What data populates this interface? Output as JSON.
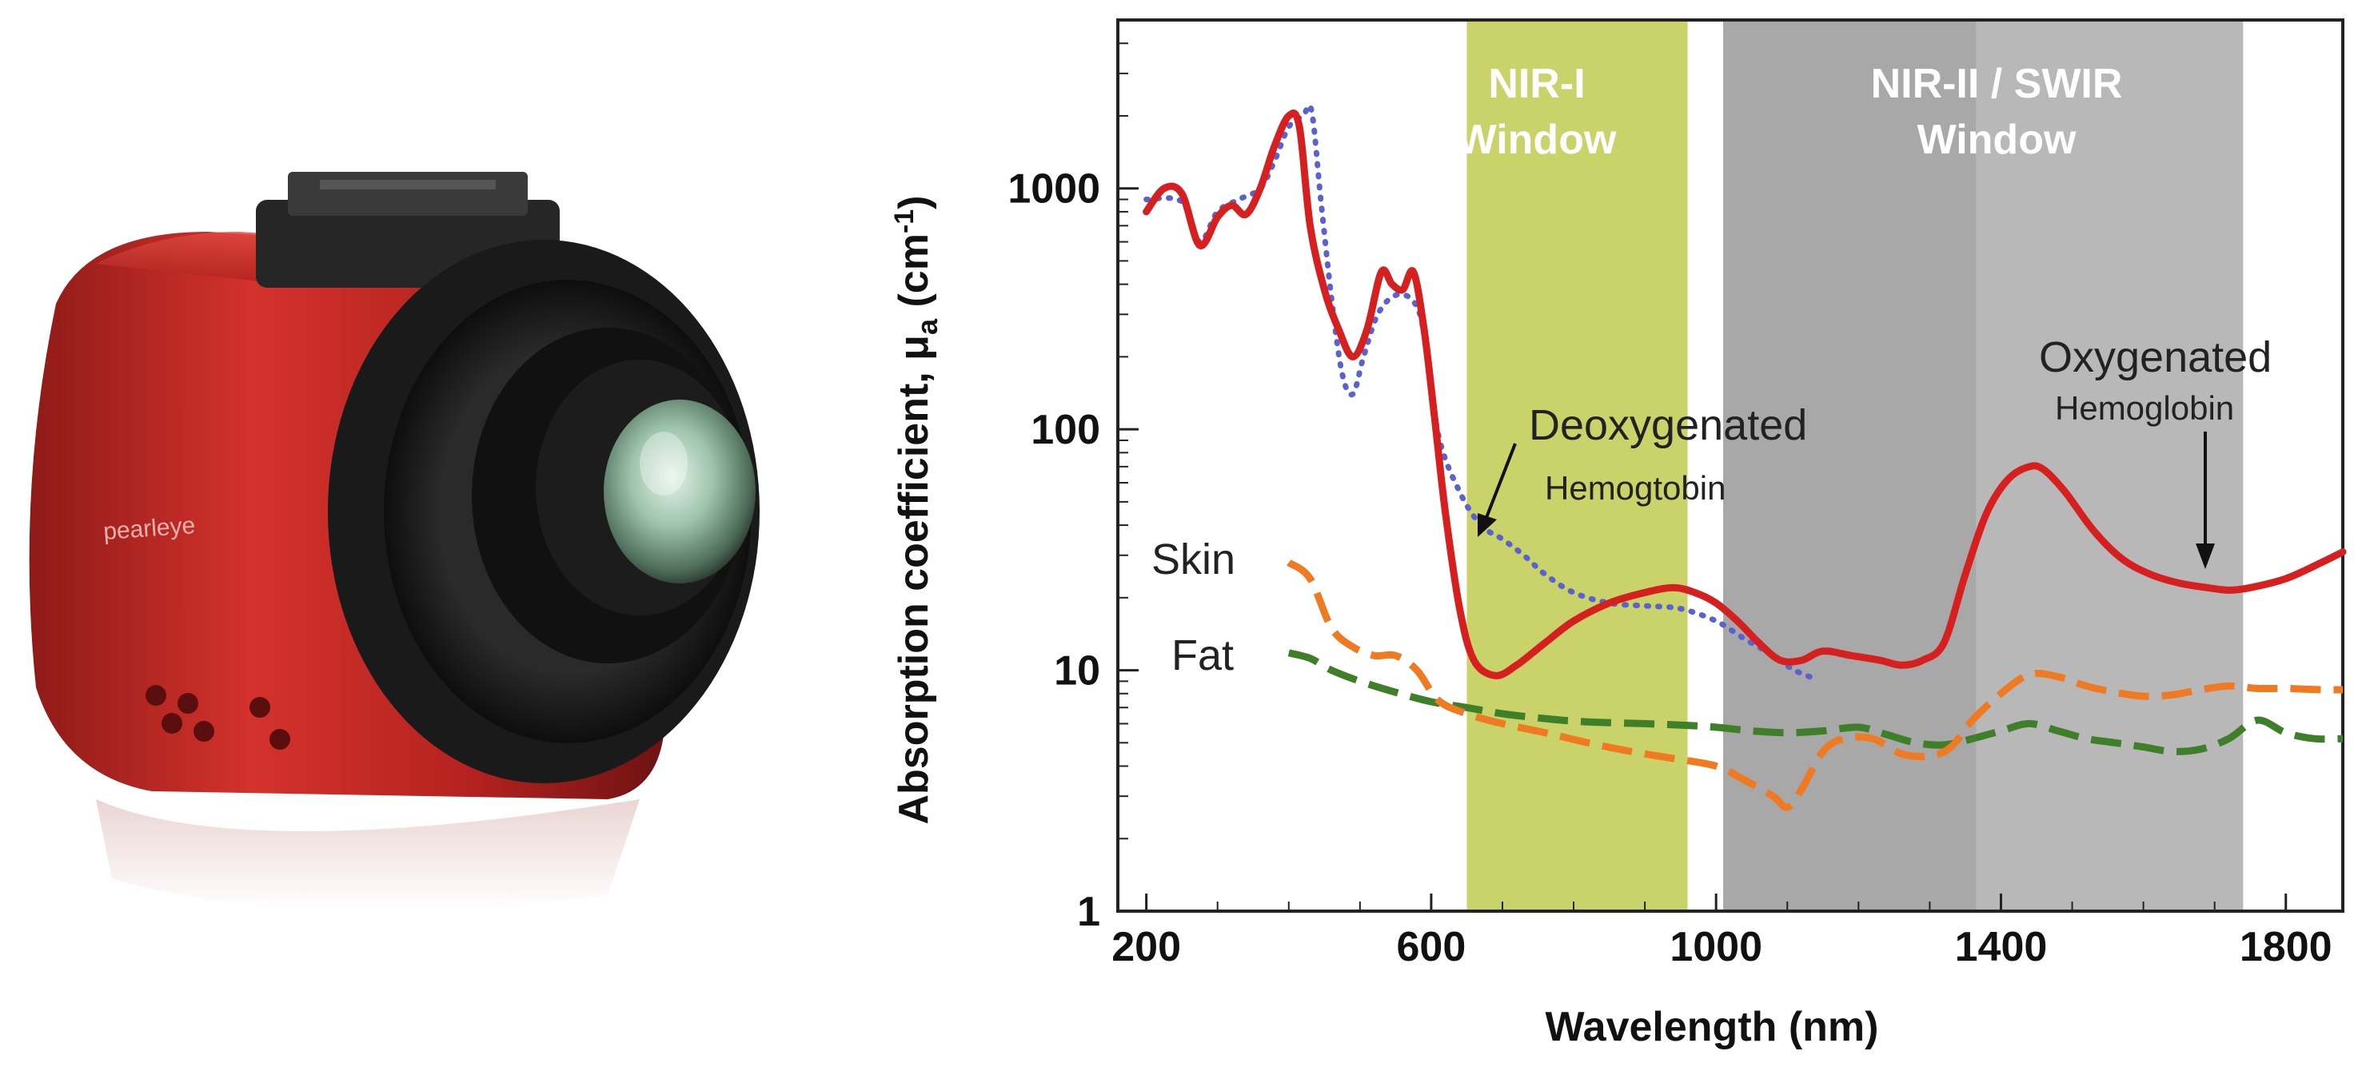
{
  "camera": {
    "brand_text": "pearleye",
    "description": "red SWIR camera"
  },
  "chart_data": {
    "type": "line",
    "xlabel": "Wavelength (nm)",
    "ylabel_main": "Absorption coefficient, μ",
    "ylabel_sub": "a",
    "ylabel_unit_open": "(cm",
    "ylabel_unit_sup": "-1",
    "ylabel_unit_close": ")",
    "xlim": [
      160,
      1880
    ],
    "ylim": [
      1,
      5000
    ],
    "yscale": "log",
    "x_ticks": [
      {
        "value": 200,
        "label": "200"
      },
      {
        "value": 600,
        "label": "600"
      },
      {
        "value": 1000,
        "label": "1000"
      },
      {
        "value": 1400,
        "label": "1400"
      },
      {
        "value": 1800,
        "label": "1800"
      }
    ],
    "y_ticks": [
      {
        "value": 1,
        "label": "1"
      },
      {
        "value": 10,
        "label": "10"
      },
      {
        "value": 100,
        "label": "100"
      },
      {
        "value": 1000,
        "label": "1000"
      }
    ],
    "windows": [
      {
        "name": "NIR-I Window",
        "lines": [
          "NIR-I",
          "Window"
        ],
        "x_start": 650,
        "x_end": 960,
        "color": "#c9d36a"
      },
      {
        "name": "NIR-II / SWIR Window",
        "lines": [
          "NIR-II / SWIR",
          "Window"
        ],
        "x_start": 1010,
        "x_end": 1740,
        "color": "#b8b8b8",
        "inner_x_start": 1010,
        "inner_x_end": 1365,
        "inner_color": "#a8a8a8"
      }
    ],
    "series": [
      {
        "name": "Oxygenated Hemoglobin",
        "style": "solid",
        "color": "#d62020",
        "points": [
          [
            200,
            800
          ],
          [
            225,
            1000
          ],
          [
            250,
            950
          ],
          [
            275,
            580
          ],
          [
            300,
            760
          ],
          [
            320,
            850
          ],
          [
            340,
            780
          ],
          [
            360,
            1000
          ],
          [
            380,
            1500
          ],
          [
            400,
            2000
          ],
          [
            415,
            1800
          ],
          [
            430,
            700
          ],
          [
            450,
            380
          ],
          [
            470,
            260
          ],
          [
            490,
            200
          ],
          [
            510,
            260
          ],
          [
            530,
            450
          ],
          [
            545,
            400
          ],
          [
            560,
            380
          ],
          [
            575,
            450
          ],
          [
            590,
            260
          ],
          [
            605,
            110
          ],
          [
            620,
            45
          ],
          [
            640,
            18
          ],
          [
            660,
            11
          ],
          [
            690,
            9.5
          ],
          [
            720,
            10.5
          ],
          [
            760,
            13
          ],
          [
            800,
            16
          ],
          [
            850,
            19
          ],
          [
            900,
            21
          ],
          [
            940,
            22
          ],
          [
            970,
            21
          ],
          [
            1000,
            19
          ],
          [
            1030,
            16
          ],
          [
            1060,
            13
          ],
          [
            1090,
            11
          ],
          [
            1120,
            11
          ],
          [
            1150,
            12
          ],
          [
            1190,
            11.5
          ],
          [
            1230,
            11
          ],
          [
            1260,
            10.5
          ],
          [
            1290,
            11
          ],
          [
            1320,
            13
          ],
          [
            1350,
            25
          ],
          [
            1380,
            45
          ],
          [
            1410,
            62
          ],
          [
            1440,
            70
          ],
          [
            1460,
            68
          ],
          [
            1490,
            55
          ],
          [
            1530,
            38
          ],
          [
            1570,
            29
          ],
          [
            1610,
            25
          ],
          [
            1650,
            23
          ],
          [
            1690,
            22
          ],
          [
            1720,
            21.5
          ],
          [
            1750,
            22
          ],
          [
            1800,
            24
          ],
          [
            1850,
            28
          ],
          [
            1880,
            31
          ]
        ]
      },
      {
        "name": "Deoxygenated Hemoglobin",
        "style": "dotted",
        "color": "#5a62d0",
        "points": [
          [
            200,
            900
          ],
          [
            250,
            880
          ],
          [
            275,
            600
          ],
          [
            300,
            800
          ],
          [
            330,
            900
          ],
          [
            360,
            1000
          ],
          [
            380,
            1300
          ],
          [
            400,
            1800
          ],
          [
            420,
            2000
          ],
          [
            432,
            2100
          ],
          [
            445,
            900
          ],
          [
            460,
            350
          ],
          [
            475,
            170
          ],
          [
            490,
            140
          ],
          [
            505,
            200
          ],
          [
            525,
            300
          ],
          [
            550,
            360
          ],
          [
            575,
            340
          ],
          [
            590,
            250
          ],
          [
            610,
            95
          ],
          [
            640,
            55
          ],
          [
            670,
            40
          ],
          [
            700,
            35
          ],
          [
            730,
            30
          ],
          [
            760,
            25
          ],
          [
            800,
            21
          ],
          [
            850,
            19
          ],
          [
            900,
            18.5
          ],
          [
            950,
            18
          ],
          [
            1000,
            16
          ],
          [
            1040,
            13.5
          ],
          [
            1080,
            11.5
          ],
          [
            1110,
            10
          ],
          [
            1140,
            9.2
          ]
        ]
      },
      {
        "name": "Skin",
        "style": "dashed",
        "color": "#f07a22",
        "points": [
          [
            400,
            28
          ],
          [
            430,
            24
          ],
          [
            460,
            15
          ],
          [
            490,
            12.5
          ],
          [
            520,
            11.5
          ],
          [
            550,
            11.5
          ],
          [
            580,
            10
          ],
          [
            610,
            7.5
          ],
          [
            650,
            6.6
          ],
          [
            700,
            6
          ],
          [
            760,
            5.5
          ],
          [
            820,
            5
          ],
          [
            880,
            4.6
          ],
          [
            940,
            4.3
          ],
          [
            1000,
            4
          ],
          [
            1040,
            3.5
          ],
          [
            1080,
            3
          ],
          [
            1100,
            2.7
          ],
          [
            1120,
            3.2
          ],
          [
            1150,
            4.6
          ],
          [
            1180,
            5.2
          ],
          [
            1220,
            5.2
          ],
          [
            1260,
            4.5
          ],
          [
            1300,
            4.4
          ],
          [
            1330,
            4.8
          ],
          [
            1360,
            6.2
          ],
          [
            1400,
            8
          ],
          [
            1440,
            9.6
          ],
          [
            1480,
            9.4
          ],
          [
            1520,
            8.6
          ],
          [
            1560,
            8.1
          ],
          [
            1600,
            7.8
          ],
          [
            1640,
            7.9
          ],
          [
            1680,
            8.3
          ],
          [
            1720,
            8.6
          ],
          [
            1760,
            8.4
          ],
          [
            1800,
            8.4
          ],
          [
            1850,
            8.3
          ],
          [
            1880,
            8.3
          ]
        ]
      },
      {
        "name": "Fat",
        "style": "dashed",
        "color": "#3f7f2a",
        "points": [
          [
            400,
            11.8
          ],
          [
            430,
            11.2
          ],
          [
            460,
            10
          ],
          [
            500,
            9
          ],
          [
            550,
            8.1
          ],
          [
            600,
            7.4
          ],
          [
            650,
            7
          ],
          [
            700,
            6.6
          ],
          [
            760,
            6.3
          ],
          [
            820,
            6.1
          ],
          [
            900,
            6
          ],
          [
            960,
            5.9
          ],
          [
            1000,
            5.8
          ],
          [
            1050,
            5.6
          ],
          [
            1100,
            5.5
          ],
          [
            1150,
            5.6
          ],
          [
            1200,
            5.8
          ],
          [
            1240,
            5.4
          ],
          [
            1280,
            5
          ],
          [
            1320,
            4.9
          ],
          [
            1360,
            5.2
          ],
          [
            1400,
            5.6
          ],
          [
            1440,
            6
          ],
          [
            1480,
            5.6
          ],
          [
            1520,
            5.2
          ],
          [
            1560,
            5
          ],
          [
            1600,
            4.8
          ],
          [
            1640,
            4.6
          ],
          [
            1680,
            4.7
          ],
          [
            1720,
            5.2
          ],
          [
            1760,
            6.2
          ],
          [
            1800,
            5.5
          ],
          [
            1840,
            5.2
          ],
          [
            1880,
            5.2
          ]
        ]
      }
    ],
    "annotations": [
      {
        "id": "deoxy",
        "line1": "Deoxygenated",
        "line2": "Hemogtobin"
      },
      {
        "id": "oxy",
        "line1": "Oxygenated",
        "line2": "Hemoglobin"
      },
      {
        "id": "skin",
        "text": "Skin"
      },
      {
        "id": "fat",
        "text": "Fat"
      }
    ]
  }
}
